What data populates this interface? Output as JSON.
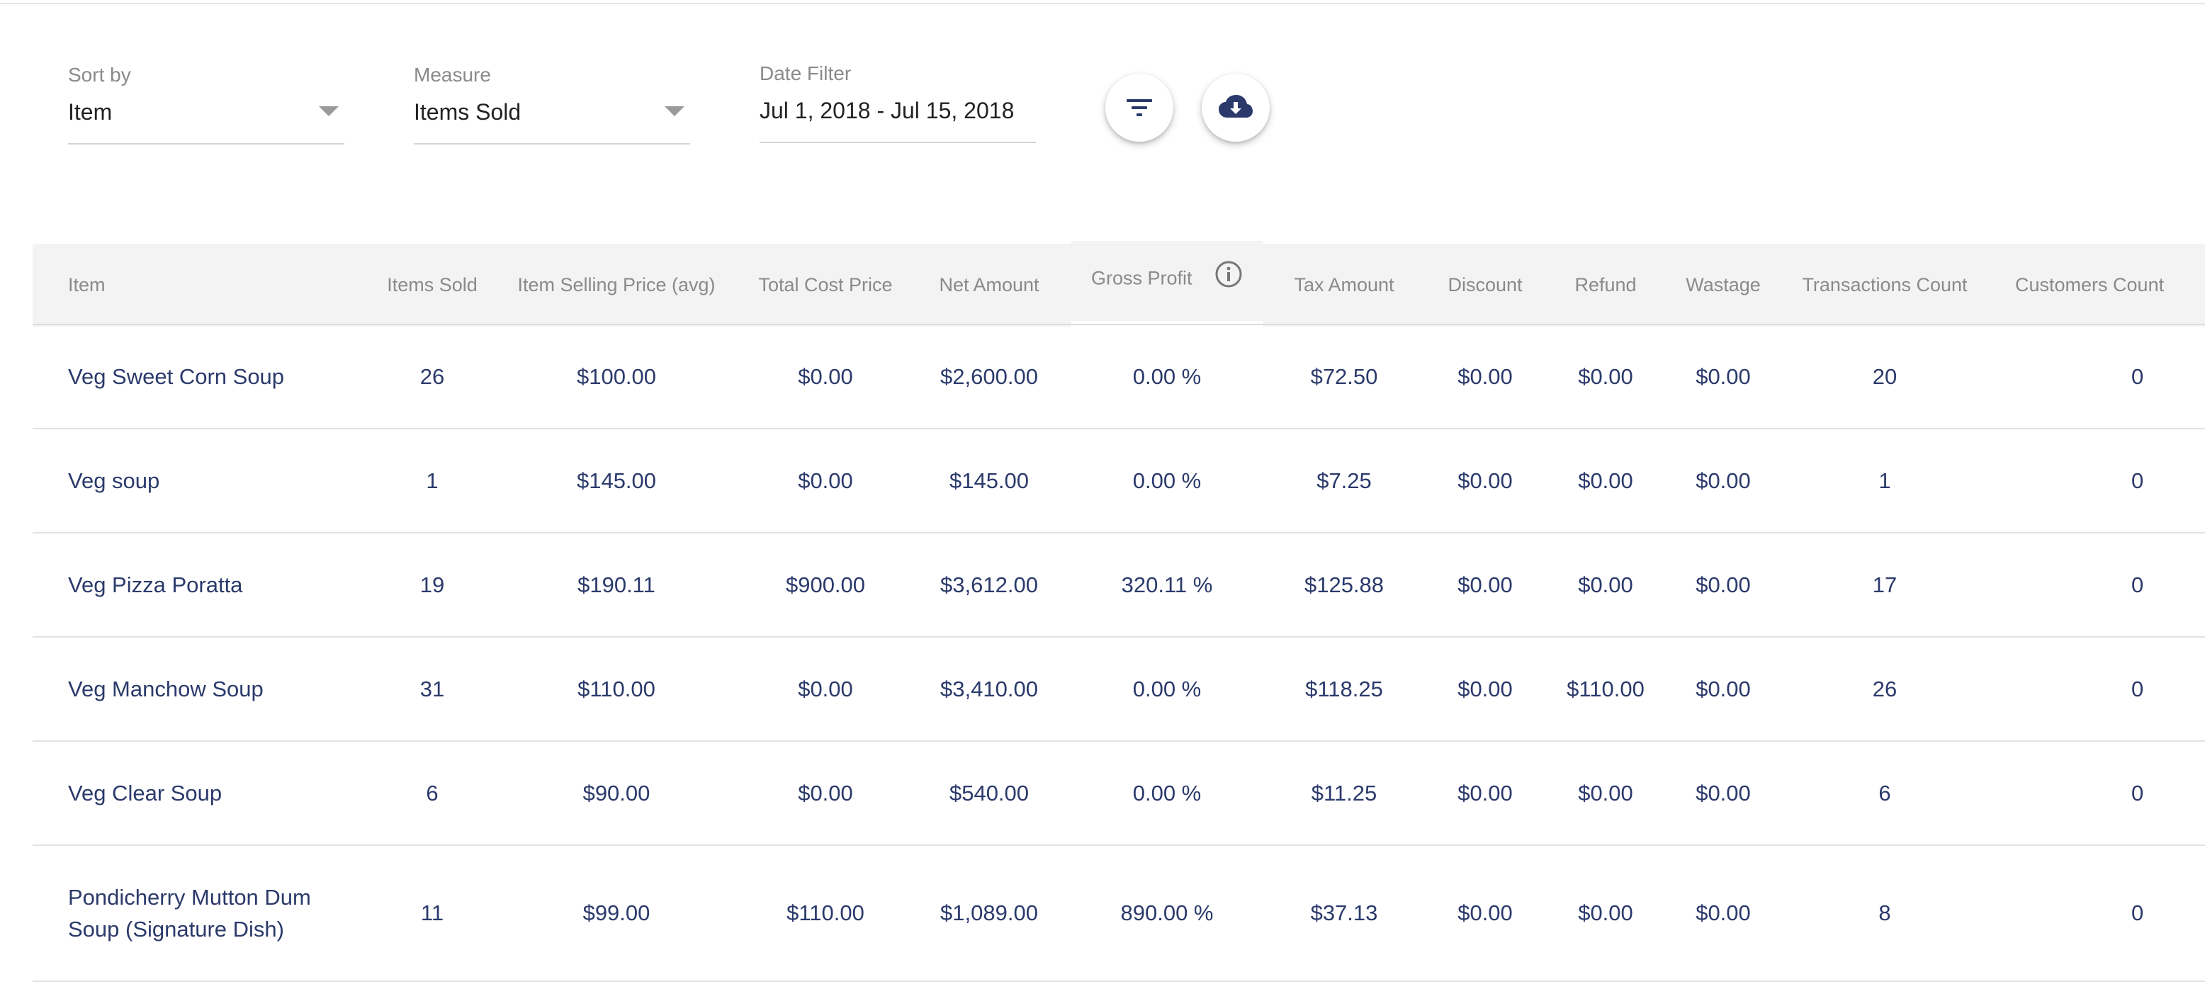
{
  "filters": {
    "sort_by": {
      "label": "Sort by",
      "value": "Item"
    },
    "measure": {
      "label": "Measure",
      "value": "Items Sold"
    },
    "date_filter": {
      "label": "Date Filter",
      "value": "Jul 1, 2018 - Jul 15, 2018"
    }
  },
  "actions": {
    "filter_icon": "filter-icon",
    "download_icon": "cloud-download-icon"
  },
  "colors": {
    "accent": "#2b3a6b",
    "header_bg": "#f3f3f3"
  },
  "table": {
    "columns": [
      "Item",
      "Items Sold",
      "Item Selling Price (avg)",
      "Total Cost Price",
      "Net Amount",
      "Gross Profit",
      "Tax Amount",
      "Discount",
      "Refund",
      "Wastage",
      "Transactions Count",
      "Customers Count"
    ],
    "rows": [
      [
        "Veg Sweet Corn Soup",
        "26",
        "$100.00",
        "$0.00",
        "$2,600.00",
        "0.00 %",
        "$72.50",
        "$0.00",
        "$0.00",
        "$0.00",
        "20",
        "0"
      ],
      [
        "Veg soup",
        "1",
        "$145.00",
        "$0.00",
        "$145.00",
        "0.00 %",
        "$7.25",
        "$0.00",
        "$0.00",
        "$0.00",
        "1",
        "0"
      ],
      [
        "Veg Pizza Poratta",
        "19",
        "$190.11",
        "$900.00",
        "$3,612.00",
        "320.11 %",
        "$125.88",
        "$0.00",
        "$0.00",
        "$0.00",
        "17",
        "0"
      ],
      [
        "Veg Manchow Soup",
        "31",
        "$110.00",
        "$0.00",
        "$3,410.00",
        "0.00 %",
        "$118.25",
        "$0.00",
        "$110.00",
        "$0.00",
        "26",
        "0"
      ],
      [
        "Veg Clear Soup",
        "6",
        "$90.00",
        "$0.00",
        "$540.00",
        "0.00 %",
        "$11.25",
        "$0.00",
        "$0.00",
        "$0.00",
        "6",
        "0"
      ],
      [
        "Pondicherry Mutton Dum Soup (Signature Dish)",
        "11",
        "$99.00",
        "$110.00",
        "$1,089.00",
        "890.00 %",
        "$37.13",
        "$0.00",
        "$0.00",
        "$0.00",
        "8",
        "0"
      ]
    ]
  }
}
